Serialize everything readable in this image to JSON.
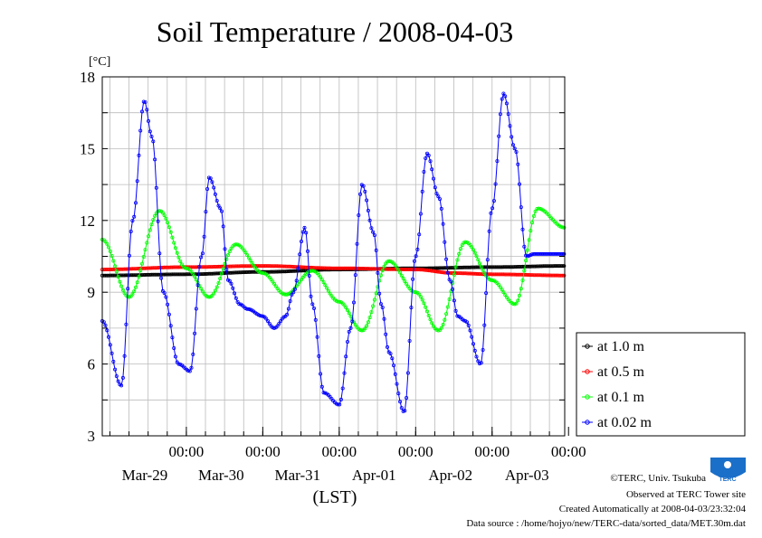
{
  "chart_data": {
    "type": "line",
    "title": "Soil Temperature / 2008-04-03",
    "ylabel": "[°C]",
    "xlabel": "(LST)",
    "ylim": [
      3,
      18
    ],
    "yticks": [
      3,
      6,
      9,
      12,
      15,
      18
    ],
    "xlim_days": [
      -1.1,
      4.95
    ],
    "x_ticks": [
      {
        "label": "00:00",
        "date": "Mar-29"
      },
      {
        "label": "00:00",
        "date": "Mar-30"
      },
      {
        "label": "00:00",
        "date": "Mar-31"
      },
      {
        "label": "00:00",
        "date": "Apr-01"
      },
      {
        "label": "00:00",
        "date": "Apr-02"
      },
      {
        "label": "00:00",
        "date": "Apr-03"
      }
    ],
    "grid": true,
    "legend_position": "right",
    "series": [
      {
        "name": "at 1.0 m",
        "color": "#000000",
        "x_days": [
          -1.1,
          0,
          1,
          2,
          3,
          4,
          4.95
        ],
        "values": [
          9.7,
          9.75,
          9.85,
          9.95,
          10.0,
          10.05,
          10.1
        ]
      },
      {
        "name": "at 0.5 m",
        "color": "#ff0000",
        "x_days": [
          -1.1,
          0,
          1,
          2,
          3,
          3.5,
          4,
          4.95
        ],
        "values": [
          9.95,
          10.05,
          10.1,
          10.0,
          9.95,
          9.8,
          9.75,
          9.7
        ]
      },
      {
        "name": "at 0.1 m",
        "color": "#00ff00",
        "x_days": [
          -1.1,
          -0.75,
          -0.35,
          0,
          0.3,
          0.65,
          1.0,
          1.3,
          1.65,
          2.0,
          2.3,
          2.65,
          3.0,
          3.3,
          3.65,
          4.0,
          4.3,
          4.6,
          4.95
        ],
        "values": [
          11.2,
          8.8,
          12.4,
          10.0,
          8.8,
          11.0,
          9.8,
          8.9,
          9.9,
          8.6,
          7.4,
          10.3,
          9.0,
          7.4,
          11.1,
          9.5,
          8.5,
          12.5,
          11.7
        ]
      },
      {
        "name": "at 0.02 m",
        "color": "#0000ff",
        "x_days": [
          -1.1,
          -0.85,
          -0.7,
          -0.55,
          -0.45,
          -0.3,
          -0.1,
          0.05,
          0.2,
          0.3,
          0.45,
          0.55,
          0.7,
          0.8,
          1.0,
          1.15,
          1.3,
          1.4,
          1.55,
          1.65,
          1.8,
          2.0,
          2.15,
          2.3,
          2.45,
          2.55,
          2.65,
          2.85,
          3.0,
          3.15,
          3.3,
          3.45,
          3.55,
          3.65,
          3.85,
          4.0,
          4.15,
          4.3,
          4.45,
          4.55,
          4.75,
          4.95
        ],
        "values": [
          7.8,
          5.1,
          12.0,
          17.0,
          15.5,
          9.0,
          6.0,
          5.7,
          10.5,
          13.8,
          12.5,
          9.5,
          8.5,
          8.3,
          8.0,
          7.5,
          8.0,
          9.0,
          11.7,
          8.5,
          4.8,
          4.3,
          7.5,
          13.5,
          11.5,
          8.5,
          6.5,
          4.0,
          10.5,
          14.8,
          13.0,
          9.5,
          8.0,
          7.8,
          6.0,
          12.5,
          17.3,
          15.0,
          10.5,
          10.6,
          10.6,
          10.6
        ]
      }
    ]
  },
  "credits": {
    "copyright": "©TERC, Univ. Tsukuba",
    "observed": "Observed at TERC Tower site",
    "created": "Created Automatically at 2008-04-03/23:32:04",
    "source": "Data source : /home/hojyo/new/TERC-data/sorted_data/MET.30m.dat"
  },
  "logo": {
    "text": "TERC",
    "color": "#1a6fc9"
  }
}
